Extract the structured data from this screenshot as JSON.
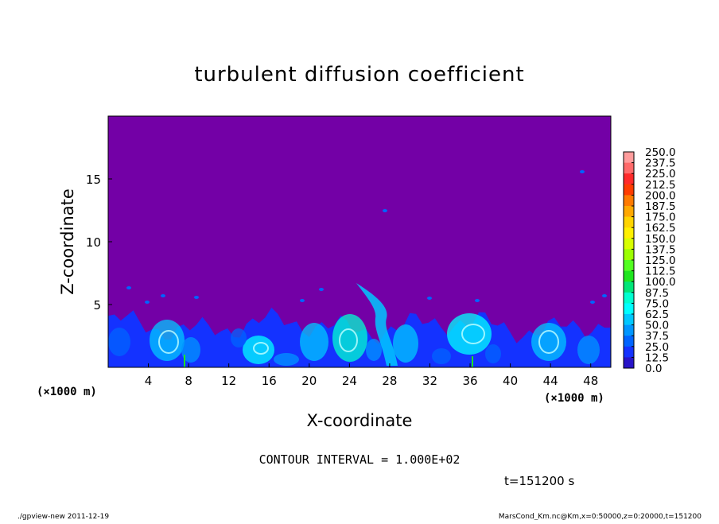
{
  "chart_data": {
    "type": "heatmap",
    "title": "turbulent diffusion coefficient",
    "xlabel": "X-coordinate",
    "ylabel": "Z-coordinate",
    "x_unit": "(×1000 m)",
    "y_unit": "(×1000 m)",
    "xlim": [
      0,
      50
    ],
    "ylim": [
      0,
      20
    ],
    "x_ticks": [
      4,
      8,
      12,
      16,
      20,
      24,
      28,
      32,
      36,
      40,
      44,
      48
    ],
    "y_ticks": [
      5,
      10,
      15
    ],
    "colorbar": {
      "levels": [
        "250.0",
        "237.5",
        "225.0",
        "212.5",
        "200.0",
        "187.5",
        "175.0",
        "162.5",
        "150.0",
        "137.5",
        "125.0",
        "112.5",
        "100.0",
        "87.5",
        "75.0",
        "62.5",
        "50.0",
        "37.5",
        "25.0",
        "12.5",
        "0.0"
      ],
      "colors": [
        "#ff9c9c",
        "#ff6a6a",
        "#ff2a2a",
        "#ff3c00",
        "#ff7a00",
        "#ffa800",
        "#ffd400",
        "#fff000",
        "#d8ff00",
        "#9cff00",
        "#52ff20",
        "#1ee61e",
        "#00e678",
        "#00ffd0",
        "#00ffff",
        "#00c8ff",
        "#0096ff",
        "#0064ff",
        "#1432ff",
        "#2814c8"
      ],
      "background_color": "#7300a6"
    },
    "contour_interval": "CONTOUR INTERVAL = 1.000E+02",
    "time_label": "t=151200 s",
    "footer_left": "./gpview-new  2011-12-19",
    "footer_right": "MarsCond_Km.nc@Km,x=0:50000,z=0:20000,t=151200"
  }
}
